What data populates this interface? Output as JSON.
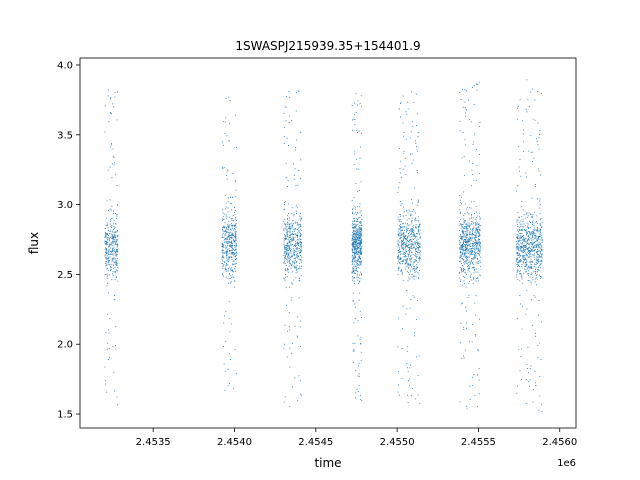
{
  "chart_data": {
    "type": "scatter",
    "title": "1SWASPJ215939.35+154401.9",
    "xlabel": "time",
    "ylabel": "flux",
    "x_offset_label": "1e6",
    "xlim": [
      2453050,
      2456100
    ],
    "ylim": [
      1.4,
      4.05
    ],
    "xticks": [
      2453500,
      2454000,
      2454500,
      2455000,
      2455500,
      2456000
    ],
    "xtick_labels": [
      "2.4535",
      "2.4540",
      "2.4545",
      "2.4550",
      "2.4555",
      "2.4560"
    ],
    "yticks": [
      1.5,
      2.0,
      2.5,
      3.0,
      3.5,
      4.0
    ],
    "ytick_labels": [
      "1.5",
      "2.0",
      "2.5",
      "3.0",
      "3.5",
      "4.0"
    ],
    "grid": false,
    "marker_color": "#1f77b4",
    "observing_seasons": [
      {
        "t_start": 2453200,
        "t_end": 2453280,
        "flux_center": 2.7,
        "flux_min": 1.55,
        "flux_max": 3.9
      },
      {
        "t_start": 2453920,
        "t_end": 2454010,
        "flux_center": 2.72,
        "flux_min": 1.6,
        "flux_max": 3.85
      },
      {
        "t_start": 2454300,
        "t_end": 2454410,
        "flux_center": 2.72,
        "flux_min": 1.52,
        "flux_max": 3.85
      },
      {
        "t_start": 2454720,
        "t_end": 2454780,
        "flux_center": 2.72,
        "flux_min": 1.6,
        "flux_max": 3.8
      },
      {
        "t_start": 2455000,
        "t_end": 2455140,
        "flux_center": 2.72,
        "flux_min": 1.53,
        "flux_max": 3.88
      },
      {
        "t_start": 2455380,
        "t_end": 2455510,
        "flux_center": 2.72,
        "flux_min": 1.52,
        "flux_max": 3.9
      },
      {
        "t_start": 2455730,
        "t_end": 2455890,
        "flux_center": 2.7,
        "flux_min": 1.52,
        "flux_max": 3.9
      }
    ]
  }
}
